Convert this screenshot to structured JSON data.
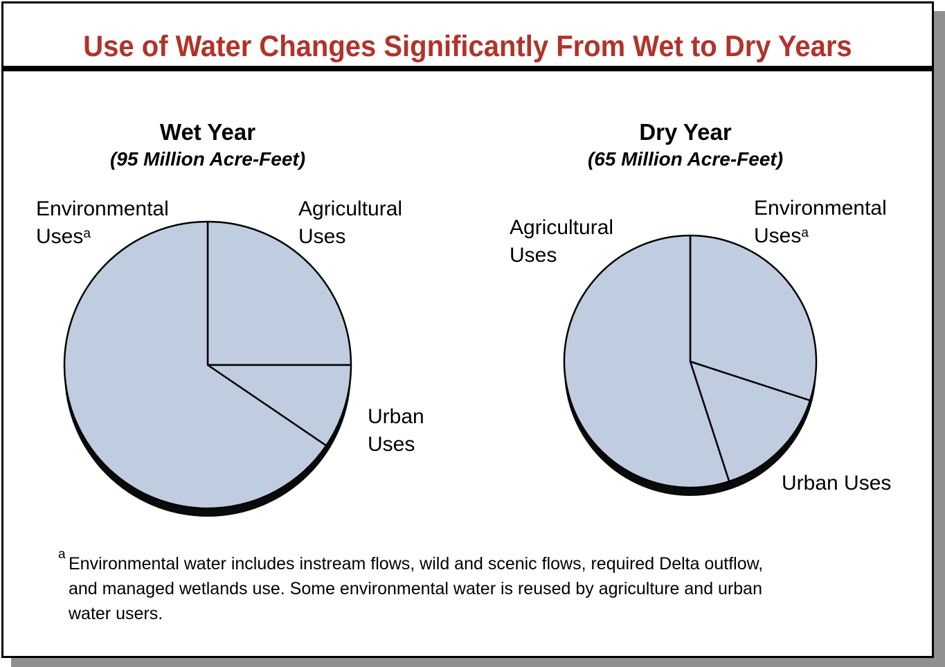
{
  "title": "Use of Water Changes Significantly From Wet to Dry Years",
  "chart_data": [
    {
      "type": "pie",
      "title": "Wet Year",
      "subtitle": "(95 Million Acre-Feet)",
      "labels": [
        "Agricultural Uses",
        "Urban Uses",
        "Environmental Uses"
      ],
      "label_lines": [
        [
          "Agricultural",
          "Uses"
        ],
        [
          "Urban",
          "Uses"
        ],
        [
          "Environmental",
          "Uses"
        ]
      ],
      "footnote_marks": [
        "",
        "",
        "a"
      ],
      "values": [
        25,
        9.5,
        65.5
      ],
      "unit": "percent (estimated)",
      "start": "12 o'clock, clockwise",
      "fill_color": "#c0cde0"
    },
    {
      "type": "pie",
      "title": "Dry Year",
      "subtitle": "(65 Million Acre-Feet)",
      "labels": [
        "Environmental Uses",
        "Urban Uses",
        "Agricultural Uses"
      ],
      "label_lines": [
        [
          "Environmental",
          "Uses"
        ],
        [
          "Urban Uses"
        ],
        [
          "Agricultural",
          "Uses"
        ]
      ],
      "footnote_marks": [
        "a",
        "",
        ""
      ],
      "values": [
        30,
        15,
        55
      ],
      "unit": "percent (estimated)",
      "start": "12 o'clock, clockwise",
      "fill_color": "#c0cde0"
    }
  ],
  "footnote": {
    "mark": "a",
    "lines": [
      "Environmental water includes instream flows, wild and scenic flows, required Delta outflow,",
      "and managed wetlands use. Some environmental water is reused by agriculture and urban",
      "water users."
    ]
  },
  "colors": {
    "title": "#b0332a",
    "pie_fill": "#c0cde0",
    "shadow": "#909093"
  }
}
